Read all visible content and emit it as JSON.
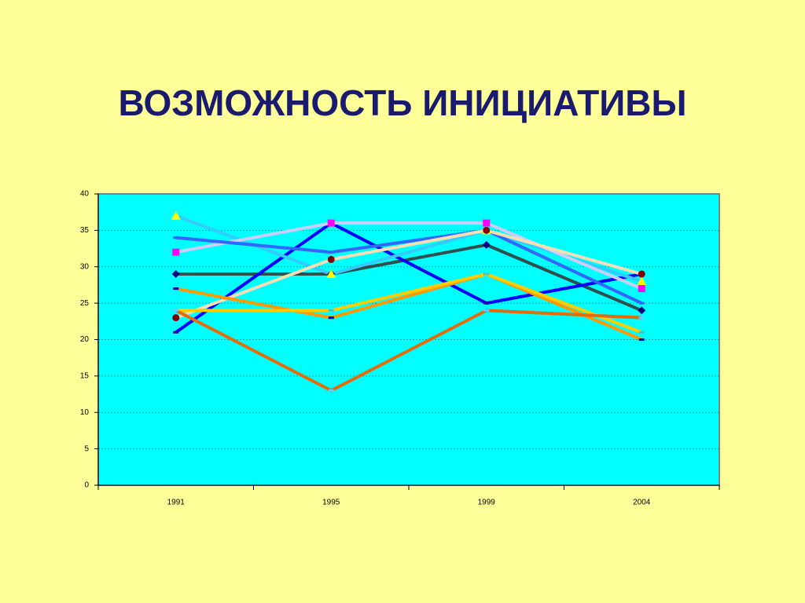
{
  "chart_data": {
    "type": "line",
    "title": "ВОЗМОЖНОСТЬ ИНИЦИАТИВЫ",
    "categories": [
      "1991",
      "1995",
      "1999",
      "2004"
    ],
    "ylim": [
      0,
      40
    ],
    "yticks": [
      0,
      5,
      10,
      15,
      20,
      25,
      30,
      35,
      40
    ],
    "grid": true,
    "series": [
      {
        "color": "#2f4f4f",
        "marker": "diamond",
        "marker_color": "#000080",
        "values": [
          29,
          29,
          33,
          24
        ]
      },
      {
        "color": "#0000ff",
        "marker": "dash",
        "marker_color": "#330099",
        "values": [
          21,
          36,
          25,
          29
        ]
      },
      {
        "color": "#33ccff",
        "marker": "triangle",
        "marker_color": "#ffff00",
        "values": [
          37,
          29,
          35,
          28
        ]
      },
      {
        "color": "#ccccff",
        "marker": "square",
        "marker_color": "#ff00ff",
        "values": [
          32,
          36,
          36,
          27
        ]
      },
      {
        "color": "#3366ff",
        "marker": "dash",
        "marker_color": "#3366ff",
        "values": [
          34,
          32,
          35,
          25
        ]
      },
      {
        "color": "#f5deb3",
        "marker": "circle",
        "marker_color": "#800000",
        "values": [
          23,
          31,
          35,
          29
        ]
      },
      {
        "color": "#ff9900",
        "marker": "dash",
        "marker_color": "#0000cc",
        "values": [
          27,
          23,
          29,
          20
        ]
      },
      {
        "color": "#ffcc00",
        "marker": "dash",
        "marker_color": "#33cccc",
        "values": [
          24,
          24,
          29,
          21
        ]
      },
      {
        "color": "#e46c0a",
        "marker": "dash",
        "marker_color": "#66ccff",
        "values": [
          24,
          13,
          24,
          23
        ]
      }
    ]
  }
}
